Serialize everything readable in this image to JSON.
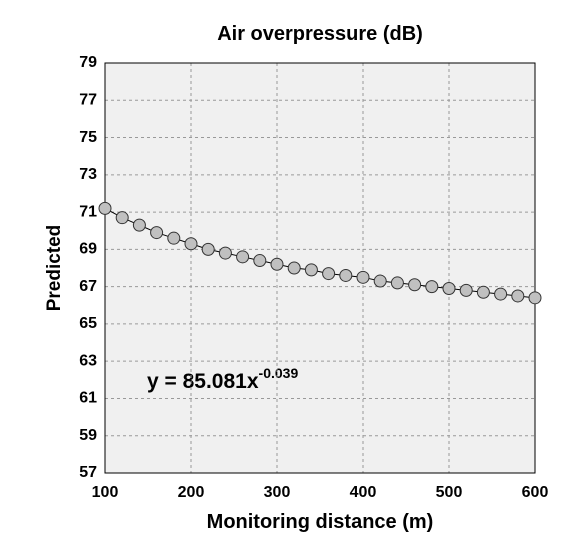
{
  "chart_data": {
    "type": "scatter",
    "title": "Air overpressure (dB)",
    "xlabel": "Monitoring distance (m)",
    "ylabel": "Predicted",
    "annotation": {
      "text": "y = 85.081x",
      "exponent": "-0.039"
    },
    "x": [
      100,
      120,
      140,
      160,
      180,
      200,
      220,
      240,
      260,
      280,
      300,
      320,
      340,
      360,
      380,
      400,
      420,
      440,
      460,
      480,
      500,
      520,
      540,
      560,
      580,
      600
    ],
    "series": [
      {
        "color": "#c0c0c0",
        "values": [
          71.2,
          70.7,
          70.3,
          69.9,
          69.6,
          69.3,
          69.0,
          68.8,
          68.6,
          68.4,
          68.2,
          68.0,
          67.9,
          67.7,
          67.6,
          67.5,
          67.3,
          67.2,
          67.1,
          67.0,
          66.9,
          66.8,
          66.7,
          66.6,
          66.5,
          66.4
        ]
      }
    ],
    "xlim": [
      100,
      600
    ],
    "ylim": [
      57,
      79
    ],
    "xticks": [
      100,
      200,
      300,
      400,
      500,
      600
    ],
    "yticks": [
      57,
      59,
      61,
      63,
      65,
      67,
      69,
      71,
      73,
      75,
      77,
      79
    ],
    "grid": true,
    "trendline": true
  }
}
